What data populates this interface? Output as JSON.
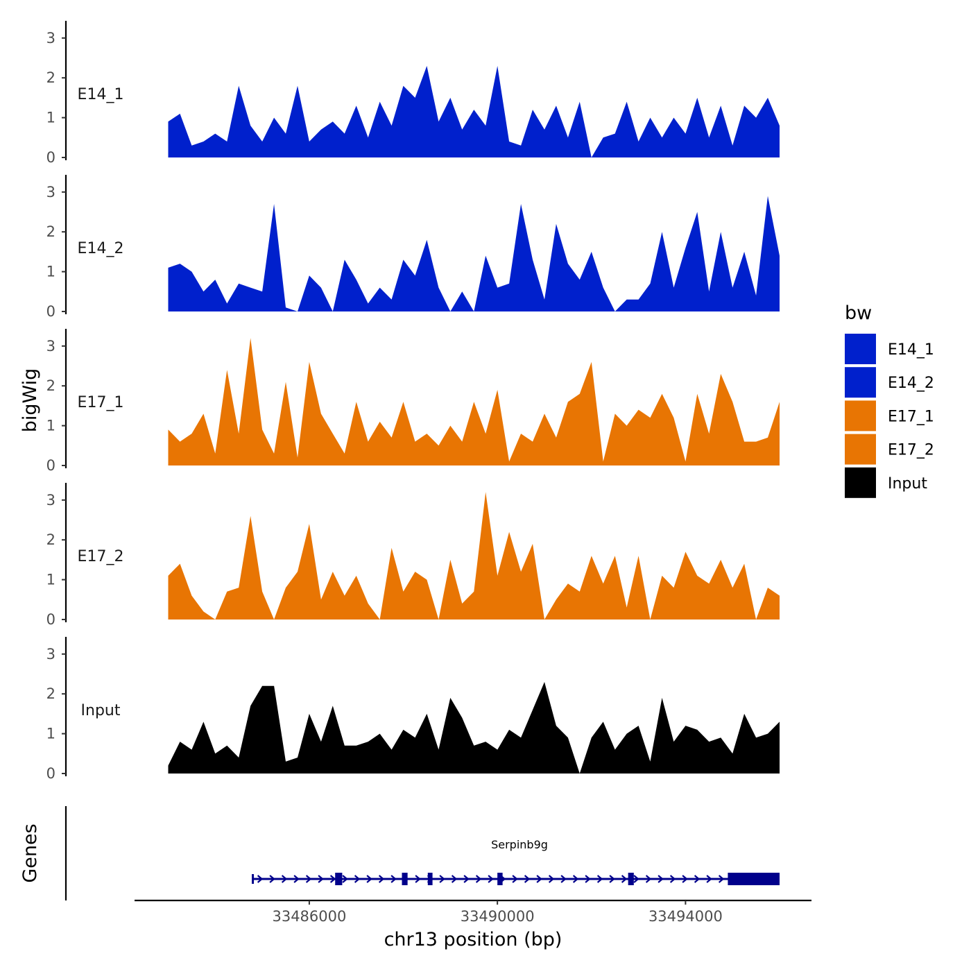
{
  "chart_data": {
    "type": "area",
    "chromosome": "chr13",
    "xlabel": "chr13 position (bp)",
    "ylabel": "bigWig",
    "genes_label": "Genes",
    "xlim": [
      33482200,
      33496750
    ],
    "x_ticks": [
      33486000,
      33490000,
      33494000
    ],
    "x_tick_labels": [
      "33486000",
      "33490000",
      "33494000"
    ],
    "ylim": [
      0,
      3.4
    ],
    "y_ticks": [
      0,
      1,
      2,
      3
    ],
    "y_tick_labels": [
      "0",
      "1",
      "2",
      "3"
    ],
    "legend": {
      "title": "bw",
      "items": [
        {
          "label": "E14_1",
          "color": "#0020CC"
        },
        {
          "label": "E14_2",
          "color": "#0020CC"
        },
        {
          "label": "E17_1",
          "color": "#E87503"
        },
        {
          "label": "E17_2",
          "color": "#E87503"
        },
        {
          "label": "Input",
          "color": "#000000"
        }
      ]
    },
    "series": [
      {
        "name": "E14_1",
        "color": "#0020CC",
        "x": [
          33483000,
          33483250,
          33483500,
          33483750,
          33484000,
          33484250,
          33484500,
          33484750,
          33485000,
          33485250,
          33485500,
          33485750,
          33486000,
          33486250,
          33486500,
          33486750,
          33487000,
          33487250,
          33487500,
          33487750,
          33488000,
          33488250,
          33488500,
          33488750,
          33489000,
          33489250,
          33489500,
          33489750,
          33490000,
          33490250,
          33490500,
          33490750,
          33491000,
          33491250,
          33491500,
          33491750,
          33492000,
          33492250,
          33492500,
          33492750,
          33493000,
          33493250,
          33493500,
          33493750,
          33494000,
          33494250,
          33494500,
          33494750,
          33495000,
          33495250,
          33495500,
          33495750,
          33496000
        ],
        "y": [
          0.9,
          1.1,
          0.3,
          0.4,
          0.6,
          0.4,
          1.8,
          0.8,
          0.4,
          1.0,
          0.6,
          1.8,
          0.4,
          0.7,
          0.9,
          0.6,
          1.3,
          0.5,
          1.4,
          0.8,
          1.8,
          1.5,
          2.3,
          0.9,
          1.5,
          0.7,
          1.2,
          0.8,
          2.3,
          0.4,
          0.3,
          1.2,
          0.7,
          1.3,
          0.5,
          1.4,
          0.0,
          0.5,
          0.6,
          1.4,
          0.4,
          1.0,
          0.5,
          1.0,
          0.6,
          1.5,
          0.5,
          1.3,
          0.3,
          1.3,
          1.0,
          1.5,
          0.8
        ]
      },
      {
        "name": "E14_2",
        "color": "#0020CC",
        "x": [
          33483000,
          33483250,
          33483500,
          33483750,
          33484000,
          33484250,
          33484500,
          33484750,
          33485000,
          33485250,
          33485500,
          33485750,
          33486000,
          33486250,
          33486500,
          33486750,
          33487000,
          33487250,
          33487500,
          33487750,
          33488000,
          33488250,
          33488500,
          33488750,
          33489000,
          33489250,
          33489500,
          33489750,
          33490000,
          33490250,
          33490500,
          33490750,
          33491000,
          33491250,
          33491500,
          33491750,
          33492000,
          33492250,
          33492500,
          33492750,
          33493000,
          33493250,
          33493500,
          33493750,
          33494000,
          33494250,
          33494500,
          33494750,
          33495000,
          33495250,
          33495500,
          33495750,
          33496000
        ],
        "y": [
          1.1,
          1.2,
          1.0,
          0.5,
          0.8,
          0.2,
          0.7,
          0.6,
          0.5,
          2.7,
          0.1,
          0.0,
          0.9,
          0.6,
          0.0,
          1.3,
          0.8,
          0.2,
          0.6,
          0.3,
          1.3,
          0.9,
          1.8,
          0.6,
          0.0,
          0.5,
          0.0,
          1.4,
          0.6,
          0.7,
          2.7,
          1.3,
          0.3,
          2.2,
          1.2,
          0.8,
          1.5,
          0.6,
          0.0,
          0.3,
          0.3,
          0.7,
          2.0,
          0.6,
          1.6,
          2.5,
          0.5,
          2.0,
          0.6,
          1.5,
          0.4,
          2.9,
          1.4
        ]
      },
      {
        "name": "E17_1",
        "color": "#E87503",
        "x": [
          33483000,
          33483250,
          33483500,
          33483750,
          33484000,
          33484250,
          33484500,
          33484750,
          33485000,
          33485250,
          33485500,
          33485750,
          33486000,
          33486250,
          33486500,
          33486750,
          33487000,
          33487250,
          33487500,
          33487750,
          33488000,
          33488250,
          33488500,
          33488750,
          33489000,
          33489250,
          33489500,
          33489750,
          33490000,
          33490250,
          33490500,
          33490750,
          33491000,
          33491250,
          33491500,
          33491750,
          33492000,
          33492250,
          33492500,
          33492750,
          33493000,
          33493250,
          33493500,
          33493750,
          33494000,
          33494250,
          33494500,
          33494750,
          33495000,
          33495250,
          33495500,
          33495750,
          33496000
        ],
        "y": [
          0.9,
          0.6,
          0.8,
          1.3,
          0.3,
          2.4,
          0.8,
          3.2,
          0.9,
          0.3,
          2.1,
          0.2,
          2.6,
          1.3,
          0.8,
          0.3,
          1.6,
          0.6,
          1.1,
          0.7,
          1.6,
          0.6,
          0.8,
          0.5,
          1.0,
          0.6,
          1.6,
          0.8,
          1.9,
          0.1,
          0.8,
          0.6,
          1.3,
          0.7,
          1.6,
          1.8,
          2.6,
          0.1,
          1.3,
          1.0,
          1.4,
          1.2,
          1.8,
          1.2,
          0.1,
          1.8,
          0.8,
          2.3,
          1.6,
          0.6,
          0.6,
          0.7,
          1.6
        ]
      },
      {
        "name": "E17_2",
        "color": "#E87503",
        "x": [
          33483000,
          33483250,
          33483500,
          33483750,
          33484000,
          33484250,
          33484500,
          33484750,
          33485000,
          33485250,
          33485500,
          33485750,
          33486000,
          33486250,
          33486500,
          33486750,
          33487000,
          33487250,
          33487500,
          33487750,
          33488000,
          33488250,
          33488500,
          33488750,
          33489000,
          33489250,
          33489500,
          33489750,
          33490000,
          33490250,
          33490500,
          33490750,
          33491000,
          33491250,
          33491500,
          33491750,
          33492000,
          33492250,
          33492500,
          33492750,
          33493000,
          33493250,
          33493500,
          33493750,
          33494000,
          33494250,
          33494500,
          33494750,
          33495000,
          33495250,
          33495500,
          33495750,
          33496000
        ],
        "y": [
          1.1,
          1.4,
          0.6,
          0.2,
          0.0,
          0.7,
          0.8,
          2.6,
          0.7,
          0.0,
          0.8,
          1.2,
          2.4,
          0.5,
          1.2,
          0.6,
          1.1,
          0.4,
          0.0,
          1.8,
          0.7,
          1.2,
          1.0,
          0.0,
          1.5,
          0.4,
          0.7,
          3.2,
          1.1,
          2.2,
          1.2,
          1.9,
          0.0,
          0.5,
          0.9,
          0.7,
          1.6,
          0.9,
          1.6,
          0.3,
          1.6,
          0.0,
          1.1,
          0.8,
          1.7,
          1.1,
          0.9,
          1.5,
          0.8,
          1.4,
          0.0,
          0.8,
          0.6
        ]
      },
      {
        "name": "Input",
        "color": "#000000",
        "x": [
          33483000,
          33483250,
          33483500,
          33483750,
          33484000,
          33484250,
          33484500,
          33484750,
          33485000,
          33485250,
          33485500,
          33485750,
          33486000,
          33486250,
          33486500,
          33486750,
          33487000,
          33487250,
          33487500,
          33487750,
          33488000,
          33488250,
          33488500,
          33488750,
          33489000,
          33489250,
          33489500,
          33489750,
          33490000,
          33490250,
          33490500,
          33490750,
          33491000,
          33491250,
          33491500,
          33491750,
          33492000,
          33492250,
          33492500,
          33492750,
          33493000,
          33493250,
          33493500,
          33493750,
          33494000,
          33494250,
          33494500,
          33494750,
          33495000,
          33495250,
          33495500,
          33495750,
          33496000
        ],
        "y": [
          0.2,
          0.8,
          0.6,
          1.3,
          0.5,
          0.7,
          0.4,
          1.7,
          2.2,
          2.2,
          0.3,
          0.4,
          1.5,
          0.8,
          1.7,
          0.7,
          0.7,
          0.8,
          1.0,
          0.6,
          1.1,
          0.9,
          1.5,
          0.6,
          1.9,
          1.4,
          0.7,
          0.8,
          0.6,
          1.1,
          0.9,
          1.6,
          2.3,
          1.2,
          0.9,
          0.0,
          0.9,
          1.3,
          0.6,
          1.0,
          1.2,
          0.3,
          1.9,
          0.8,
          1.2,
          1.1,
          0.8,
          0.9,
          0.5,
          1.5,
          0.9,
          1.0,
          1.3
        ]
      }
    ],
    "genes": [
      {
        "name": "Serpinb9g",
        "strand": "+",
        "start": 33484800,
        "end": 33496000,
        "exons": [
          [
            33486550,
            33486700
          ],
          [
            33487970,
            33488090
          ],
          [
            33488520,
            33488620
          ],
          [
            33490000,
            33490110
          ],
          [
            33492780,
            33492900
          ],
          [
            33494900,
            33496000
          ]
        ]
      }
    ]
  }
}
